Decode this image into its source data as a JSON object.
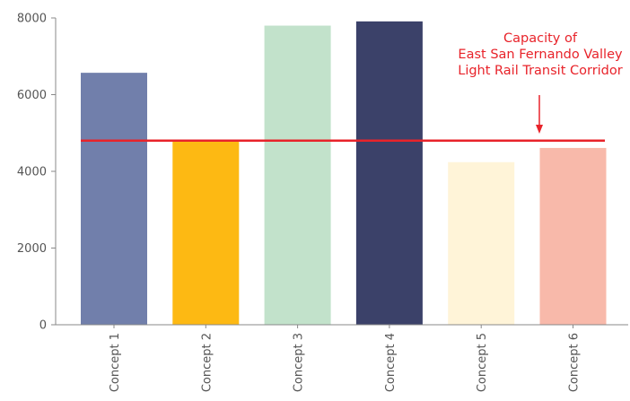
{
  "chart_data": {
    "type": "bar",
    "categories": [
      "Concept 1",
      "Concept 2",
      "Concept 3",
      "Concept 4",
      "Concept 5",
      "Concept 6"
    ],
    "values": [
      6570,
      4820,
      7800,
      7910,
      4240,
      4610
    ],
    "colors": [
      "#717fab",
      "#fdb913",
      "#c2e2cb",
      "#3b4169",
      "#fff4d8",
      "#f8b9aa"
    ],
    "ylim": [
      0,
      8000
    ],
    "yticks": [
      0,
      2000,
      4000,
      6000,
      8000
    ],
    "ytick_labels": [
      "0",
      "2000",
      "4000",
      "6000",
      "8000"
    ],
    "title": "",
    "xlabel": "",
    "ylabel": "",
    "grid": false,
    "reference_line": {
      "value": 4800,
      "color": "#e8232a",
      "label_lines": [
        "Capacity of",
        "East San Fernando Valley",
        "Light Rail Transit Corridor"
      ]
    }
  }
}
